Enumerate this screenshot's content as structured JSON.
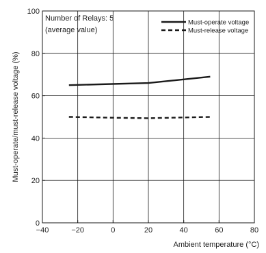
{
  "chart_data": {
    "type": "line",
    "xlabel": "Ambient temperature (°C)",
    "ylabel": "Must-operate/must-release voltage (%)",
    "xlim": [
      -40,
      80
    ],
    "ylim": [
      0,
      100
    ],
    "x_ticks": [
      -40,
      -20,
      0,
      20,
      40,
      60,
      80
    ],
    "y_ticks": [
      0,
      20,
      40,
      60,
      80,
      100
    ],
    "x_tick_labels": [
      "−40",
      "−20",
      "0",
      "20",
      "40",
      "60",
      "80"
    ],
    "y_tick_labels": [
      "0",
      "20",
      "40",
      "60",
      "80",
      "100"
    ],
    "grid": true,
    "legend_position": "top-right",
    "annotation": [
      "Number of Relays: 5",
      "(average value)"
    ],
    "series": [
      {
        "name": "Must-operate voltage",
        "style": "solid",
        "color": "#1a1a1a",
        "x": [
          -25,
          20,
          55
        ],
        "y": [
          65,
          66,
          69
        ]
      },
      {
        "name": "Must-release voltage",
        "style": "dashed",
        "color": "#1a1a1a",
        "x": [
          -25,
          0,
          20,
          55
        ],
        "y": [
          50,
          49.6,
          49.4,
          50
        ]
      }
    ]
  }
}
